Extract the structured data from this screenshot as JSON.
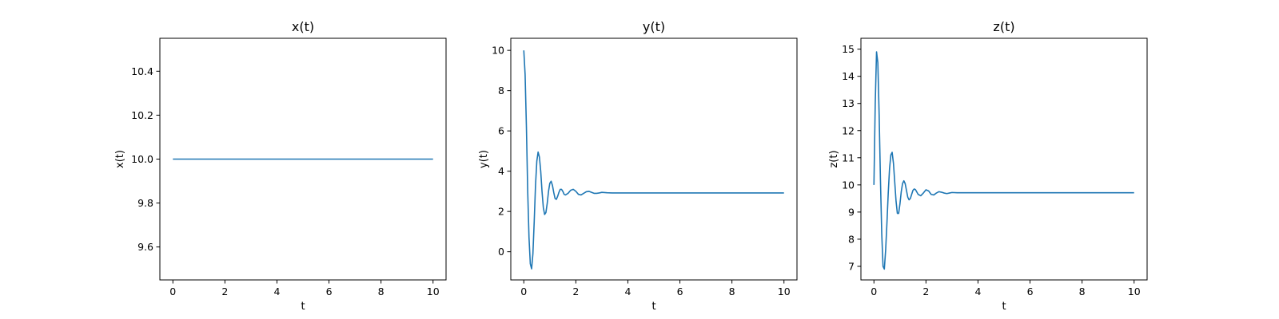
{
  "colors": {
    "line": "#1f77b4",
    "axes": "#000000",
    "background": "#ffffff"
  },
  "chart_data": [
    {
      "type": "line",
      "title": "x(t)",
      "xlabel": "t",
      "ylabel": "x(t)",
      "xlim": [
        -0.5,
        10.5
      ],
      "ylim": [
        9.45,
        10.55
      ],
      "xticks": [
        0,
        2,
        4,
        6,
        8,
        10
      ],
      "yticks": [
        9.6,
        9.8,
        10.0,
        10.2,
        10.4
      ],
      "xtick_labels": [
        "0",
        "2",
        "4",
        "6",
        "8",
        "10"
      ],
      "ytick_labels": [
        "9.6",
        "9.8",
        "10.0",
        "10.2",
        "10.4"
      ],
      "grid": false,
      "legend": "none",
      "x": [
        0,
        10
      ],
      "y": [
        10.0,
        10.0
      ]
    },
    {
      "type": "line",
      "title": "y(t)",
      "xlabel": "t",
      "ylabel": "y(t)",
      "xlim": [
        -0.5,
        10.5
      ],
      "ylim": [
        -1.4,
        10.6
      ],
      "xticks": [
        0,
        2,
        4,
        6,
        8,
        10
      ],
      "yticks": [
        0,
        2,
        4,
        6,
        8,
        10
      ],
      "xtick_labels": [
        "0",
        "2",
        "4",
        "6",
        "8",
        "10"
      ],
      "ytick_labels": [
        "0",
        "2",
        "4",
        "6",
        "8",
        "10"
      ],
      "grid": false,
      "legend": "none",
      "x": [
        0,
        0.05,
        0.1,
        0.15,
        0.2,
        0.25,
        0.3,
        0.35,
        0.4,
        0.45,
        0.5,
        0.55,
        0.6,
        0.65,
        0.7,
        0.75,
        0.8,
        0.85,
        0.9,
        0.95,
        1.0,
        1.05,
        1.1,
        1.15,
        1.2,
        1.25,
        1.3,
        1.35,
        1.4,
        1.45,
        1.5,
        1.55,
        1.6,
        1.7,
        1.8,
        1.9,
        2.0,
        2.1,
        2.2,
        2.3,
        2.4,
        2.5,
        2.6,
        2.7,
        2.8,
        2.9,
        3.0,
        3.2,
        3.4,
        3.6,
        3.8,
        4.0,
        5.0,
        6.0,
        7.0,
        8.0,
        9.0,
        10.0
      ],
      "y": [
        10.0,
        8.8,
        6.2,
        3.0,
        0.7,
        -0.6,
        -0.85,
        -0.1,
        1.5,
        3.3,
        4.5,
        4.95,
        4.7,
        4.0,
        3.0,
        2.2,
        1.85,
        1.95,
        2.4,
        3.0,
        3.4,
        3.5,
        3.3,
        2.95,
        2.65,
        2.6,
        2.75,
        2.95,
        3.1,
        3.1,
        3.0,
        2.85,
        2.82,
        2.9,
        3.05,
        3.1,
        3.0,
        2.85,
        2.82,
        2.9,
        2.98,
        3.0,
        2.95,
        2.9,
        2.9,
        2.92,
        2.95,
        2.93,
        2.92,
        2.92,
        2.92,
        2.92,
        2.92,
        2.92,
        2.92,
        2.92,
        2.92,
        2.92
      ]
    },
    {
      "type": "line",
      "title": "z(t)",
      "xlabel": "t",
      "ylabel": "z(t)",
      "xlim": [
        -0.5,
        10.5
      ],
      "ylim": [
        6.5,
        15.4
      ],
      "xticks": [
        0,
        2,
        4,
        6,
        8,
        10
      ],
      "yticks": [
        7,
        8,
        9,
        10,
        11,
        12,
        13,
        14,
        15
      ],
      "xtick_labels": [
        "0",
        "2",
        "4",
        "6",
        "8",
        "10"
      ],
      "ytick_labels": [
        "7",
        "8",
        "9",
        "10",
        "11",
        "12",
        "13",
        "14",
        "15"
      ],
      "grid": false,
      "legend": "none",
      "x": [
        0,
        0.05,
        0.1,
        0.15,
        0.2,
        0.25,
        0.3,
        0.35,
        0.4,
        0.45,
        0.5,
        0.55,
        0.6,
        0.65,
        0.7,
        0.75,
        0.8,
        0.85,
        0.9,
        0.95,
        1.0,
        1.05,
        1.1,
        1.15,
        1.2,
        1.25,
        1.3,
        1.35,
        1.4,
        1.45,
        1.5,
        1.55,
        1.6,
        1.7,
        1.8,
        1.9,
        2.0,
        2.1,
        2.2,
        2.3,
        2.4,
        2.5,
        2.6,
        2.7,
        2.8,
        2.9,
        3.0,
        3.2,
        3.4,
        3.6,
        3.8,
        4.0,
        5.0,
        6.0,
        7.0,
        8.0,
        9.0,
        10.0
      ],
      "y": [
        10.0,
        13.0,
        14.9,
        14.5,
        12.6,
        10.2,
        8.2,
        7.0,
        6.9,
        7.6,
        8.6,
        9.7,
        10.6,
        11.1,
        11.2,
        10.8,
        10.1,
        9.4,
        8.95,
        8.95,
        9.3,
        9.75,
        10.05,
        10.15,
        10.05,
        9.8,
        9.55,
        9.45,
        9.5,
        9.65,
        9.8,
        9.85,
        9.82,
        9.65,
        9.6,
        9.7,
        9.82,
        9.78,
        9.65,
        9.63,
        9.7,
        9.75,
        9.73,
        9.7,
        9.68,
        9.7,
        9.72,
        9.71,
        9.71,
        9.71,
        9.71,
        9.71,
        9.71,
        9.71,
        9.71,
        9.71,
        9.71,
        9.71
      ]
    }
  ]
}
